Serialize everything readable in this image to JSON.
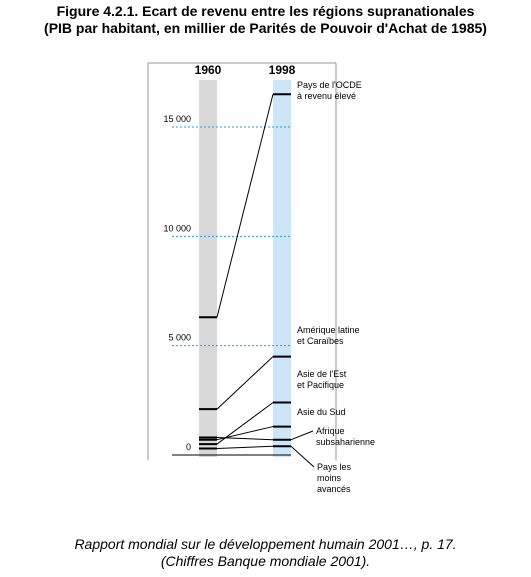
{
  "title_line1": "Figure 4.2.1.  Ecart de revenu entre les régions supranationales",
  "title_line2": "(PIB par habitant, en millier de Parités de Pouvoir d'Achat de 1985)",
  "caption_line1": "Rapport mondial sur le développement humain 2001…, p. 17.",
  "caption_line2": "(Chiffres Banque mondiale 2001).",
  "colors": {
    "bar1960": "#d9d9d9",
    "bar1998": "#cce6f7",
    "gridline": "#1aa3e0",
    "line": "#000000"
  },
  "chart_data": {
    "type": "line",
    "x": [
      "1960",
      "1998"
    ],
    "ylim": [
      0,
      17000
    ],
    "yticks": [
      0,
      5000,
      10000,
      15000
    ],
    "ytick_labels": [
      "0",
      "5 000",
      "10 000",
      "15 000"
    ],
    "grid": "dashed lines at 5 000, 10 000, 15 000 in 1998 column",
    "series": [
      {
        "name": "Pays de l'OCDE à revenu élevé",
        "label_lines": [
          "Pays de l'OCDE",
          "à revenu élevé"
        ],
        "values": [
          6300,
          16500
        ]
      },
      {
        "name": "Amérique latine et Caraïbes",
        "label_lines": [
          "Amérique latine",
          "et Caraïbes"
        ],
        "values": [
          2100,
          4500
        ]
      },
      {
        "name": "Asie de l'Est et Pacifique",
        "label_lines": [
          "Asie de l'Est",
          "et Pacifique"
        ],
        "values": [
          500,
          2400
        ]
      },
      {
        "name": "Asie du Sud",
        "label_lines": [
          "Asie du Sud"
        ],
        "values": [
          700,
          1300
        ]
      },
      {
        "name": "Afrique subsaharienne",
        "label_lines": [
          "Afrique",
          "subsaharienne"
        ],
        "values": [
          800,
          700
        ]
      },
      {
        "name": "Pays les moins avancés",
        "label_lines": [
          "Pays les",
          "moins",
          "avancés"
        ],
        "values": [
          300,
          400
        ]
      }
    ]
  }
}
